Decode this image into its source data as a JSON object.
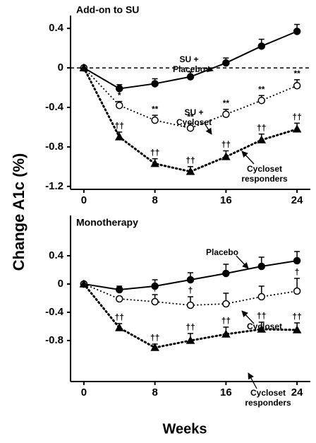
{
  "chart_data": [
    {
      "type": "line",
      "title": "Add-on to SU",
      "ylabel": "Change A1c (%)",
      "x": [
        0,
        4,
        8,
        12,
        16,
        20,
        24
      ],
      "xlim": [
        -1.5,
        25.5
      ],
      "xticks": [
        0,
        8,
        16,
        24
      ],
      "ylim": [
        -1.23,
        0.53
      ],
      "yticks": [
        0.4,
        0,
        -0.4,
        -0.8,
        -1.2
      ],
      "zero_line": true,
      "series": [
        {
          "label": [
            "SU +",
            "Placebo"
          ],
          "color": "#000000",
          "line_style": "solid",
          "marker": "filled-circle",
          "values": [
            0,
            -0.21,
            -0.16,
            -0.09,
            0.05,
            0.22,
            0.37
          ],
          "errors": [
            0,
            0.04,
            0.05,
            0.05,
            0.05,
            0.07,
            0.07
          ],
          "markers": [
            null,
            null,
            null,
            null,
            null,
            null,
            null
          ]
        },
        {
          "label": [
            "SU +",
            "Cycloset"
          ],
          "color": "#000000",
          "line_style": "dotted",
          "marker": "open-circle",
          "values": [
            0,
            -0.38,
            -0.53,
            -0.61,
            -0.47,
            -0.33,
            -0.18
          ],
          "errors": [
            0,
            0.04,
            0.05,
            0.05,
            0.05,
            0.05,
            0.06
          ],
          "markers": [
            null,
            "*",
            "**",
            "**",
            "**",
            "**",
            "**"
          ]
        },
        {
          "label": [
            "Cycloset",
            "responders"
          ],
          "color": "#000000",
          "line_style": "dotted-heavy",
          "marker": "triangle",
          "values": [
            0,
            -0.7,
            -0.97,
            -1.05,
            -0.9,
            -0.73,
            -0.62
          ],
          "errors": [
            0,
            0.05,
            0.05,
            0.05,
            0.06,
            0.06,
            0.06
          ],
          "markers": [
            null,
            "††",
            "††",
            "††",
            "††",
            "††",
            "††"
          ]
        }
      ]
    },
    {
      "type": "line",
      "title": "Monotherapy",
      "xlabel": "Weeks",
      "x": [
        0,
        4,
        8,
        12,
        16,
        20,
        24
      ],
      "xlim": [
        -1.5,
        25.5
      ],
      "xticks": [
        0,
        8,
        16,
        24
      ],
      "ylim": [
        -1.38,
        0.97
      ],
      "yticks": [
        0.4,
        0,
        -0.4,
        -0.8
      ],
      "zero_line": false,
      "series": [
        {
          "label": [
            "Placebo"
          ],
          "color": "#000000",
          "line_style": "solid",
          "marker": "filled-circle",
          "values": [
            0,
            -0.08,
            -0.03,
            0.06,
            0.15,
            0.25,
            0.33
          ],
          "errors": [
            0,
            0.05,
            0.09,
            0.1,
            0.13,
            0.13,
            0.13
          ],
          "markers": [
            null,
            null,
            null,
            null,
            null,
            null,
            null
          ]
        },
        {
          "label": [
            "Cycloset"
          ],
          "color": "#000000",
          "line_style": "dotted",
          "marker": "open-circle",
          "values": [
            0,
            -0.21,
            -0.25,
            -0.3,
            -0.28,
            -0.18,
            -0.1
          ],
          "errors": [
            0,
            0.03,
            0.1,
            0.12,
            0.15,
            0.15,
            0.18
          ],
          "markers": [
            null,
            null,
            "†",
            "†",
            null,
            null,
            "†"
          ]
        },
        {
          "label": [
            "Cycloset",
            "responders"
          ],
          "color": "#000000",
          "line_style": "dotted-heavy",
          "marker": "triangle",
          "values": [
            0,
            -0.62,
            -0.9,
            -0.8,
            -0.71,
            -0.64,
            -0.65
          ],
          "errors": [
            0,
            0.06,
            0.05,
            0.1,
            0.1,
            0.1,
            0.1
          ],
          "markers": [
            null,
            "††",
            "††",
            "††",
            "††",
            "††",
            "††"
          ]
        }
      ]
    }
  ]
}
